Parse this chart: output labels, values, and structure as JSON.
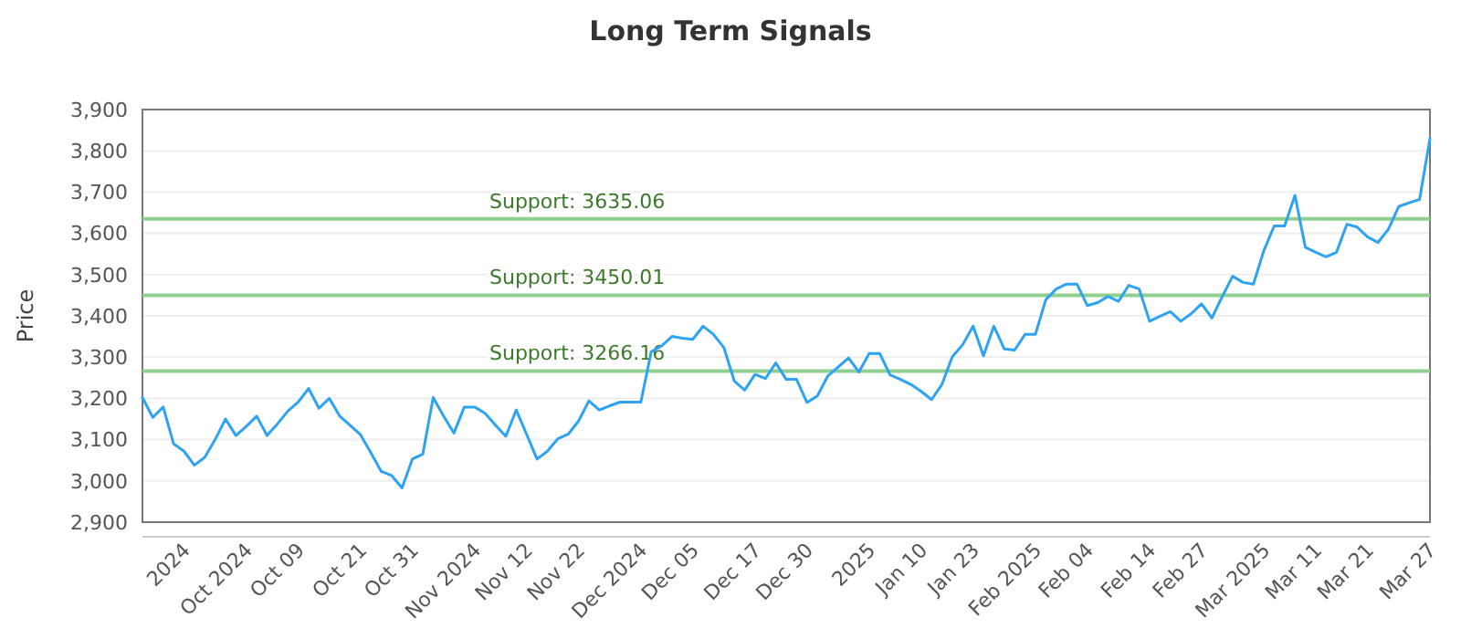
{
  "chart_data": {
    "type": "line",
    "title": "Long Term Signals",
    "ylabel": "Price",
    "categories": [
      null,
      null,
      null,
      null,
      "2024",
      null,
      null,
      null,
      null,
      null,
      "Oct 2024",
      null,
      null,
      null,
      null,
      "Oct 09",
      null,
      null,
      null,
      null,
      null,
      "Oct 21",
      null,
      null,
      null,
      null,
      "Oct 31",
      null,
      null,
      null,
      null,
      null,
      "Nov 2024",
      null,
      null,
      null,
      null,
      "Nov 12",
      null,
      null,
      null,
      null,
      "Nov 22",
      null,
      null,
      null,
      null,
      null,
      "Dec 2024",
      null,
      null,
      null,
      null,
      "Dec 05",
      null,
      null,
      null,
      null,
      null,
      "Dec 17",
      null,
      null,
      null,
      null,
      "Dec 30",
      null,
      null,
      null,
      null,
      null,
      "2025",
      null,
      null,
      null,
      null,
      "Jan 10",
      null,
      null,
      null,
      null,
      "Jan 23",
      null,
      null,
      null,
      null,
      null,
      "Feb 2025",
      null,
      null,
      null,
      null,
      "Feb 04",
      null,
      null,
      null,
      null,
      null,
      "Feb 14",
      null,
      null,
      null,
      null,
      "Feb 27",
      null,
      null,
      null,
      null,
      null,
      "Mar 2025",
      null,
      null,
      null,
      null,
      "Mar 11",
      null,
      null,
      null,
      null,
      "Mar 21",
      null,
      null,
      null,
      null,
      null,
      "Mar 27"
    ],
    "series": [
      {
        "color": "#2ea3f2",
        "values": [
          3202,
          3154,
          3179,
          3090,
          3072,
          3038,
          3057,
          3100,
          3150,
          3110,
          3132,
          3157,
          3110,
          3138,
          3169,
          3191,
          3224,
          3176,
          3200,
          3157,
          3135,
          3112,
          3068,
          3023,
          3013,
          2983,
          3053,
          3065,
          3202,
          3157,
          3116,
          3179,
          3179,
          3164,
          3135,
          3108,
          3172,
          3113,
          3053,
          3072,
          3102,
          3113,
          3145,
          3194,
          3172,
          3182,
          3191,
          3191,
          3191,
          3313,
          3327,
          3350,
          3346,
          3343,
          3375,
          3355,
          3323,
          3242,
          3220,
          3258,
          3248,
          3286,
          3246,
          3246,
          3190,
          3206,
          3254,
          3276,
          3298,
          3264,
          3309,
          3309,
          3257,
          3246,
          3234,
          3217,
          3197,
          3234,
          3301,
          3330,
          3375,
          3303,
          3375,
          3320,
          3317,
          3355,
          3355,
          3439,
          3465,
          3477,
          3477,
          3425,
          3432,
          3447,
          3435,
          3474,
          3465,
          3387,
          3399,
          3410,
          3387,
          3405,
          3429,
          3395,
          3447,
          3496,
          3481,
          3477,
          3558,
          3618,
          3618,
          3692,
          3566,
          3554,
          3543,
          3554,
          3622,
          3615,
          3591,
          3578,
          3610,
          3665,
          3674,
          3682,
          3830
        ]
      }
    ],
    "ylim": [
      2900,
      3900
    ],
    "yticks": [
      {
        "value": 2900,
        "label": "2,900"
      },
      {
        "value": 3000,
        "label": "3,000"
      },
      {
        "value": 3100,
        "label": "3,100"
      },
      {
        "value": 3200,
        "label": "3,200"
      },
      {
        "value": 3300,
        "label": "3,300"
      },
      {
        "value": 3400,
        "label": "3,400"
      },
      {
        "value": 3500,
        "label": "3,500"
      },
      {
        "value": 3600,
        "label": "3,600"
      },
      {
        "value": 3700,
        "label": "3,700"
      },
      {
        "value": 3800,
        "label": "3,800"
      },
      {
        "value": 3900,
        "label": "3,900"
      }
    ],
    "grid": "y",
    "marker": "none",
    "line_style": "solid",
    "ref_lines": [
      {
        "axis": "y",
        "value": 3635.06,
        "label": "Support: 3635.06",
        "color": "#8fcf8f"
      },
      {
        "axis": "y",
        "value": 3450.01,
        "label": "Support: 3450.01",
        "color": "#8fcf8f"
      },
      {
        "axis": "y",
        "value": 3266.16,
        "label": "Support: 3266.16",
        "color": "#8fcf8f"
      }
    ]
  }
}
